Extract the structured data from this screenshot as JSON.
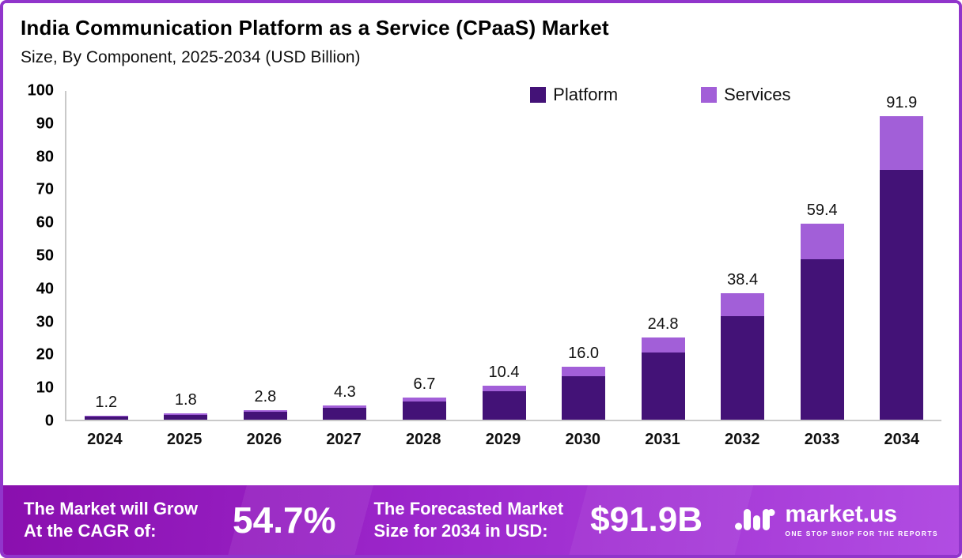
{
  "chart_data": {
    "type": "bar",
    "stacked": true,
    "title": "India Communication Platform as a Service (CPaaS) Market",
    "subtitle": "Size, By Component, 2025-2034 (USD Billion)",
    "categories": [
      "2024",
      "2025",
      "2026",
      "2027",
      "2028",
      "2029",
      "2030",
      "2031",
      "2032",
      "2033",
      "2034"
    ],
    "series": [
      {
        "name": "Platform",
        "color": "#431277",
        "values": [
          1.0,
          1.5,
          2.3,
          3.5,
          5.5,
          8.5,
          13.1,
          20.3,
          31.4,
          48.6,
          75.5
        ]
      },
      {
        "name": "Services",
        "color": "#a25fd8",
        "values": [
          0.2,
          0.3,
          0.5,
          0.8,
          1.2,
          1.9,
          2.9,
          4.5,
          7.0,
          10.8,
          16.4
        ]
      }
    ],
    "totals_labels": [
      "1.2",
      "1.8",
      "2.8",
      "4.3",
      "6.7",
      "10.4",
      "16.0",
      "24.8",
      "38.4",
      "59.4",
      "91.9"
    ],
    "ylim": [
      0,
      100
    ],
    "y_ticks": [
      0,
      10,
      20,
      30,
      40,
      50,
      60,
      70,
      80,
      90,
      100
    ],
    "grid": false,
    "legend_position": "top-inside"
  },
  "banner": {
    "cagr_label_line1": "The Market will Grow",
    "cagr_label_line2": "At the CAGR of:",
    "cagr_value": "54.7%",
    "forecast_label_line1": "The Forecasted Market",
    "forecast_label_line2": "Size for 2034 in USD:",
    "forecast_value": "$91.9B",
    "brand": {
      "name": "market.us",
      "tagline": "ONE STOP SHOP FOR THE REPORTS"
    }
  }
}
